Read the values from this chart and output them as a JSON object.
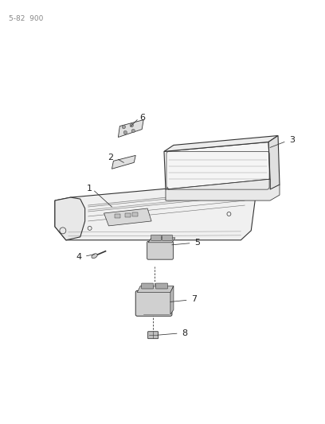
{
  "page_ref": "5-82  900",
  "bg_color": "#ffffff",
  "line_color": "#333333",
  "label_color": "#222222",
  "figsize": [
    4.08,
    5.33
  ],
  "dpi": 100
}
